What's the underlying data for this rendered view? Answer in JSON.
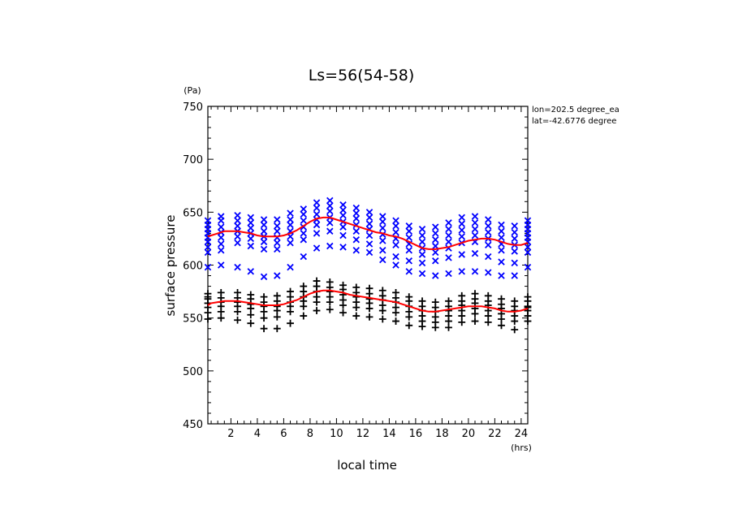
{
  "chart_data": {
    "type": "scatter",
    "title": "Ls=56(54-58)",
    "xlabel": "local time",
    "ylabel": "surface pressure",
    "x_unit": "(hrs)",
    "y_unit": "(Pa)",
    "xlim": [
      0.25,
      24.5
    ],
    "ylim": [
      450,
      750
    ],
    "x_ticks": [
      2,
      4,
      6,
      8,
      10,
      12,
      14,
      16,
      18,
      20,
      22,
      24
    ],
    "y_ticks": [
      450,
      500,
      550,
      600,
      650,
      700,
      750
    ],
    "annotations": [
      "lon=202.5 degree_ea",
      "lat=-42.6776 degree"
    ],
    "colors": {
      "series_a": "#0000ff",
      "series_b": "#000000",
      "mean": "#ff0000"
    },
    "series": [
      {
        "marker": "x",
        "color": "#0000ff",
        "x": [
          0.25,
          0.25,
          0.25,
          0.25,
          0.25,
          0.25,
          0.25,
          0.25,
          0.25,
          1.25,
          1.25,
          1.25,
          1.25,
          1.25,
          1.25,
          1.25,
          1.25,
          2.5,
          2.5,
          2.5,
          2.5,
          2.5,
          2.5,
          2.5,
          3.5,
          3.5,
          3.5,
          3.5,
          3.5,
          3.5,
          3.5,
          4.5,
          4.5,
          4.5,
          4.5,
          4.5,
          4.5,
          4.5,
          5.5,
          5.5,
          5.5,
          5.5,
          5.5,
          5.5,
          5.5,
          6.5,
          6.5,
          6.5,
          6.5,
          6.5,
          6.5,
          6.5,
          7.5,
          7.5,
          7.5,
          7.5,
          7.5,
          7.5,
          7.5,
          8.5,
          8.5,
          8.5,
          8.5,
          8.5,
          8.5,
          8.5,
          9.5,
          9.5,
          9.5,
          9.5,
          9.5,
          9.5,
          9.5,
          10.5,
          10.5,
          10.5,
          10.5,
          10.5,
          10.5,
          10.5,
          11.5,
          11.5,
          11.5,
          11.5,
          11.5,
          11.5,
          11.5,
          12.5,
          12.5,
          12.5,
          12.5,
          12.5,
          12.5,
          12.5,
          13.5,
          13.5,
          13.5,
          13.5,
          13.5,
          13.5,
          13.5,
          14.5,
          14.5,
          14.5,
          14.5,
          14.5,
          14.5,
          14.5,
          15.5,
          15.5,
          15.5,
          15.5,
          15.5,
          15.5,
          15.5,
          16.5,
          16.5,
          16.5,
          16.5,
          16.5,
          16.5,
          16.5,
          17.5,
          17.5,
          17.5,
          17.5,
          17.5,
          17.5,
          17.5,
          18.5,
          18.5,
          18.5,
          18.5,
          18.5,
          18.5,
          18.5,
          19.5,
          19.5,
          19.5,
          19.5,
          19.5,
          19.5,
          19.5,
          20.5,
          20.5,
          20.5,
          20.5,
          20.5,
          20.5,
          20.5,
          21.5,
          21.5,
          21.5,
          21.5,
          21.5,
          21.5,
          21.5,
          22.5,
          22.5,
          22.5,
          22.5,
          22.5,
          22.5,
          22.5,
          23.5,
          23.5,
          23.5,
          23.5,
          23.5,
          23.5,
          23.5,
          24.5,
          24.5,
          24.5,
          24.5,
          24.5,
          24.5,
          24.5,
          24.5,
          24.5
        ],
        "y": [
          642,
          638,
          634,
          630,
          626,
          622,
          617,
          612,
          598,
          646,
          642,
          636,
          631,
          626,
          620,
          614,
          600,
          647,
          642,
          637,
          632,
          627,
          621,
          598,
          645,
          640,
          635,
          630,
          625,
          618,
          594,
          643,
          638,
          632,
          627,
          622,
          615,
          589,
          643,
          637,
          632,
          626,
          621,
          615,
          590,
          649,
          643,
          638,
          632,
          627,
          621,
          598,
          653,
          648,
          642,
          636,
          630,
          624,
          608,
          659,
          654,
          648,
          643,
          638,
          630,
          616,
          661,
          656,
          651,
          645,
          640,
          632,
          618,
          657,
          652,
          647,
          641,
          636,
          628,
          617,
          654,
          649,
          644,
          638,
          632,
          624,
          614,
          650,
          645,
          639,
          634,
          628,
          620,
          612,
          646,
          641,
          635,
          629,
          623,
          614,
          605,
          642,
          637,
          631,
          625,
          619,
          608,
          600,
          637,
          632,
          626,
          620,
          614,
          604,
          594,
          634,
          628,
          622,
          616,
          610,
          602,
          592,
          636,
          630,
          624,
          618,
          612,
          604,
          590,
          640,
          634,
          628,
          622,
          616,
          607,
          592,
          645,
          639,
          633,
          627,
          621,
          610,
          594,
          646,
          640,
          634,
          628,
          622,
          611,
          594,
          643,
          637,
          631,
          625,
          619,
          608,
          593,
          638,
          632,
          626,
          620,
          614,
          603,
          590,
          637,
          631,
          625,
          619,
          613,
          602,
          590,
          642,
          638,
          634,
          630,
          626,
          622,
          617,
          612,
          598
        ]
      },
      {
        "marker": "+",
        "color": "#000000",
        "x": [
          0.25,
          0.25,
          0.25,
          0.25,
          0.25,
          0.25,
          0.25,
          1.25,
          1.25,
          1.25,
          1.25,
          1.25,
          1.25,
          2.5,
          2.5,
          2.5,
          2.5,
          2.5,
          2.5,
          3.5,
          3.5,
          3.5,
          3.5,
          3.5,
          3.5,
          4.5,
          4.5,
          4.5,
          4.5,
          4.5,
          4.5,
          5.5,
          5.5,
          5.5,
          5.5,
          5.5,
          5.5,
          6.5,
          6.5,
          6.5,
          6.5,
          6.5,
          6.5,
          7.5,
          7.5,
          7.5,
          7.5,
          7.5,
          7.5,
          8.5,
          8.5,
          8.5,
          8.5,
          8.5,
          8.5,
          9.5,
          9.5,
          9.5,
          9.5,
          9.5,
          9.5,
          10.5,
          10.5,
          10.5,
          10.5,
          10.5,
          10.5,
          11.5,
          11.5,
          11.5,
          11.5,
          11.5,
          11.5,
          12.5,
          12.5,
          12.5,
          12.5,
          12.5,
          12.5,
          13.5,
          13.5,
          13.5,
          13.5,
          13.5,
          13.5,
          14.5,
          14.5,
          14.5,
          14.5,
          14.5,
          14.5,
          15.5,
          15.5,
          15.5,
          15.5,
          15.5,
          15.5,
          16.5,
          16.5,
          16.5,
          16.5,
          16.5,
          16.5,
          17.5,
          17.5,
          17.5,
          17.5,
          17.5,
          17.5,
          18.5,
          18.5,
          18.5,
          18.5,
          18.5,
          18.5,
          19.5,
          19.5,
          19.5,
          19.5,
          19.5,
          19.5,
          20.5,
          20.5,
          20.5,
          20.5,
          20.5,
          20.5,
          21.5,
          21.5,
          21.5,
          21.5,
          21.5,
          21.5,
          22.5,
          22.5,
          22.5,
          22.5,
          22.5,
          22.5,
          23.5,
          23.5,
          23.5,
          23.5,
          23.5,
          23.5,
          24.5,
          24.5,
          24.5,
          24.5,
          24.5,
          24.5,
          24.5
        ],
        "y": [
          573,
          568,
          564,
          560,
          555,
          549,
          570,
          574,
          569,
          565,
          561,
          556,
          550,
          574,
          569,
          565,
          561,
          556,
          548,
          572,
          568,
          563,
          559,
          553,
          545,
          570,
          565,
          561,
          556,
          550,
          540,
          571,
          566,
          561,
          557,
          551,
          540,
          575,
          570,
          565,
          561,
          556,
          545,
          580,
          575,
          570,
          566,
          561,
          552,
          585,
          580,
          575,
          570,
          565,
          557,
          584,
          579,
          575,
          570,
          565,
          558,
          581,
          577,
          572,
          567,
          562,
          555,
          579,
          574,
          570,
          565,
          560,
          552,
          578,
          573,
          568,
          564,
          559,
          551,
          576,
          571,
          567,
          562,
          557,
          549,
          574,
          569,
          565,
          560,
          555,
          547,
          570,
          566,
          561,
          556,
          551,
          543,
          566,
          561,
          557,
          552,
          547,
          542,
          565,
          560,
          556,
          551,
          546,
          541,
          566,
          561,
          557,
          552,
          547,
          541,
          571,
          566,
          562,
          557,
          552,
          546,
          573,
          568,
          564,
          559,
          554,
          547,
          571,
          566,
          562,
          557,
          552,
          546,
          568,
          563,
          559,
          554,
          549,
          543,
          566,
          561,
          557,
          552,
          547,
          539,
          570,
          566,
          561,
          557,
          552,
          547,
          560
        ]
      },
      {
        "marker": "line",
        "color": "#ff0000",
        "x": [
          0.25,
          0.5,
          1,
          1.5,
          2,
          2.5,
          3,
          3.5,
          4,
          4.5,
          5,
          5.5,
          6,
          6.5,
          7,
          7.5,
          8,
          8.5,
          9,
          9.5,
          10,
          10.5,
          11,
          11.5,
          12,
          12.5,
          13,
          13.5,
          14,
          14.5,
          15,
          15.5,
          16,
          16.5,
          17,
          17.5,
          18,
          18.5,
          19,
          19.5,
          20,
          20.5,
          21,
          21.5,
          22,
          22.5,
          23,
          23.5,
          24,
          24.5
        ],
        "y": [
          627,
          628,
          630,
          632,
          632,
          632,
          631,
          630,
          628,
          627,
          627,
          627,
          628,
          630,
          633,
          637,
          641,
          644,
          645,
          645,
          643,
          641,
          639,
          637,
          635,
          633,
          631,
          630,
          628,
          627,
          625,
          622,
          619,
          616,
          615,
          615,
          616,
          617,
          619,
          621,
          623,
          624,
          625,
          625,
          624,
          622,
          620,
          619,
          619,
          621
        ]
      },
      {
        "marker": "line",
        "color": "#ff0000",
        "x": [
          0.25,
          0.5,
          1,
          1.5,
          2,
          2.5,
          3,
          3.5,
          4,
          4.5,
          5,
          5.5,
          6,
          6.5,
          7,
          7.5,
          8,
          8.5,
          9,
          9.5,
          10,
          10.5,
          11,
          11.5,
          12,
          12.5,
          13,
          13.5,
          14,
          14.5,
          15,
          15.5,
          16,
          16.5,
          17,
          17.5,
          18,
          18.5,
          19,
          19.5,
          20,
          20.5,
          21,
          21.5,
          22,
          22.5,
          23,
          23.5,
          24,
          24.5
        ],
        "y": [
          562,
          564,
          565,
          566,
          566,
          566,
          565,
          564,
          563,
          562,
          562,
          562,
          563,
          565,
          567,
          570,
          573,
          575,
          576,
          576,
          575,
          574,
          572,
          571,
          570,
          569,
          568,
          567,
          566,
          565,
          563,
          561,
          559,
          557,
          556,
          556,
          557,
          558,
          559,
          560,
          561,
          561,
          561,
          560,
          559,
          557,
          556,
          556,
          557,
          559
        ]
      }
    ]
  }
}
